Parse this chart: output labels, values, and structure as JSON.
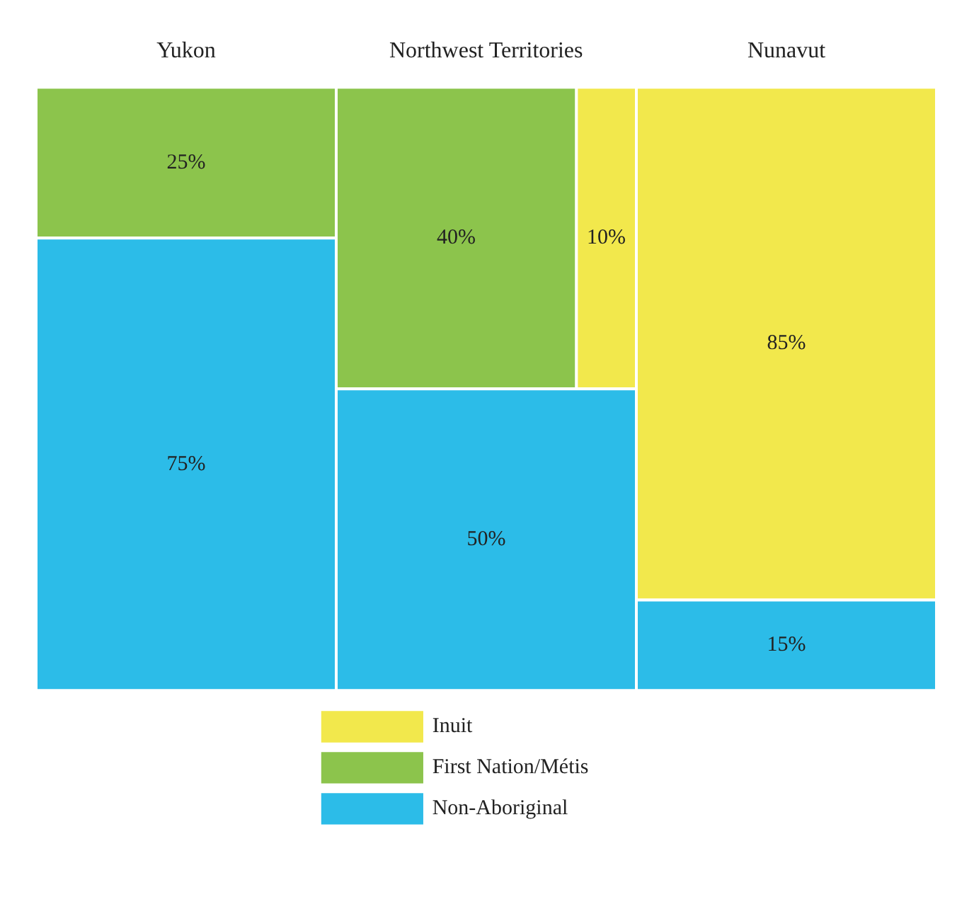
{
  "chart_data": {
    "type": "other",
    "categories": [
      "Yukon",
      "Northwest Territories",
      "Nunavut"
    ],
    "series": [
      {
        "name": "Inuit",
        "color": "#f2e84c",
        "values": [
          null,
          10,
          85
        ],
        "value_labels": [
          null,
          "10%",
          "85%"
        ]
      },
      {
        "name": "First Nation/Métis",
        "color": "#8cc44c",
        "values": [
          25,
          40,
          null
        ],
        "value_labels": [
          "25%",
          "40%",
          null
        ]
      },
      {
        "name": "Non-Aboriginal",
        "color": "#2cbce8",
        "values": [
          75,
          50,
          15
        ],
        "value_labels": [
          "75%",
          "50%",
          "15%"
        ]
      }
    ],
    "legend": "bottom"
  }
}
